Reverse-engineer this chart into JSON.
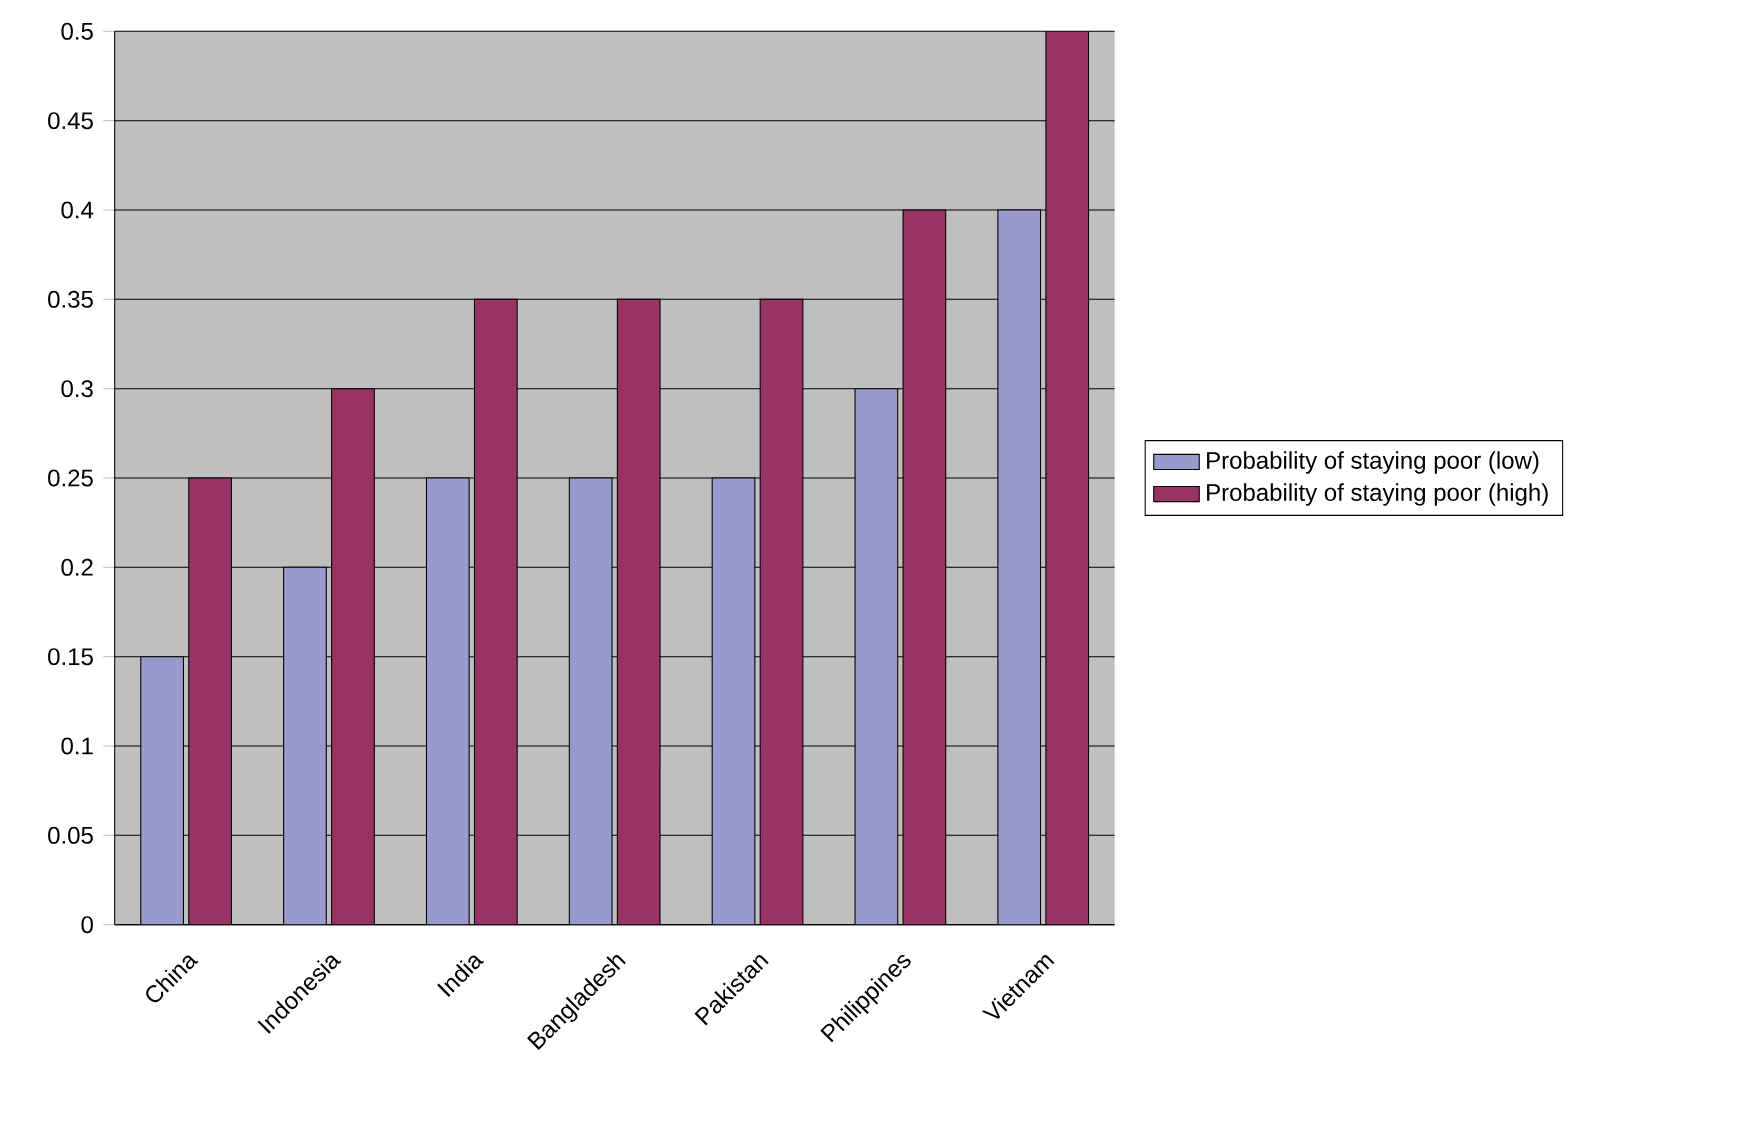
{
  "chart_data": {
    "type": "bar",
    "categories": [
      "China",
      "Indonesia",
      "India",
      "Bangladesh",
      "Pakistan",
      "Philippines",
      "Vietnam"
    ],
    "series": [
      {
        "name": "Probability of staying poor (low)",
        "color": "#9999cc",
        "values": [
          0.15,
          0.2,
          0.25,
          0.25,
          0.25,
          0.3,
          0.4
        ]
      },
      {
        "name": "Probability of staying poor (high)",
        "color": "#993366",
        "values": [
          0.25,
          0.3,
          0.35,
          0.35,
          0.35,
          0.4,
          0.5
        ]
      }
    ],
    "ylim": [
      0,
      0.5
    ],
    "yticks": [
      0,
      0.05,
      0.1,
      0.15,
      0.2,
      0.25,
      0.3,
      0.35,
      0.4,
      0.45,
      0.5
    ],
    "grid": "y",
    "legend": "right"
  }
}
